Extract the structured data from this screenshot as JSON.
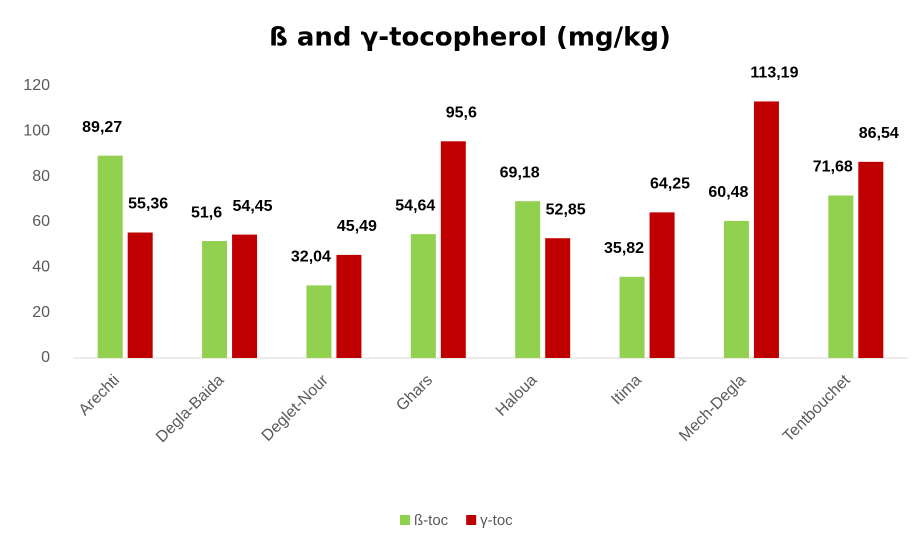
{
  "chart_data": {
    "type": "bar",
    "title": "ß and γ-tocopherol (mg/kg)",
    "categories": [
      "Arechti",
      "Degla-Baida",
      "Deglet-Nour",
      "Ghars",
      "Haloua",
      "Itima",
      "Mech-Degla",
      "Tentbouchet"
    ],
    "series": [
      {
        "name": "ß-toc",
        "color": "#92d050",
        "values": [
          89.27,
          51.6,
          32.04,
          54.64,
          69.18,
          35.82,
          60.48,
          71.68
        ],
        "value_labels": [
          "89,27",
          "51,6",
          "32,04",
          "54,64",
          "69,18",
          "35,82",
          "60,48",
          "71,68"
        ]
      },
      {
        "name": "γ-toc",
        "color": "#c00000",
        "values": [
          55.36,
          54.45,
          45.49,
          95.6,
          52.85,
          64.25,
          113.19,
          86.54
        ],
        "value_labels": [
          "55,36",
          "54,45",
          "45,49",
          "95,6",
          "52,85",
          "64,25",
          "113,19",
          "86,54"
        ]
      }
    ],
    "ylim": [
      0,
      120
    ],
    "yticks": [
      0,
      20,
      40,
      60,
      80,
      100,
      120
    ],
    "grid": false,
    "legend": "bottom"
  }
}
